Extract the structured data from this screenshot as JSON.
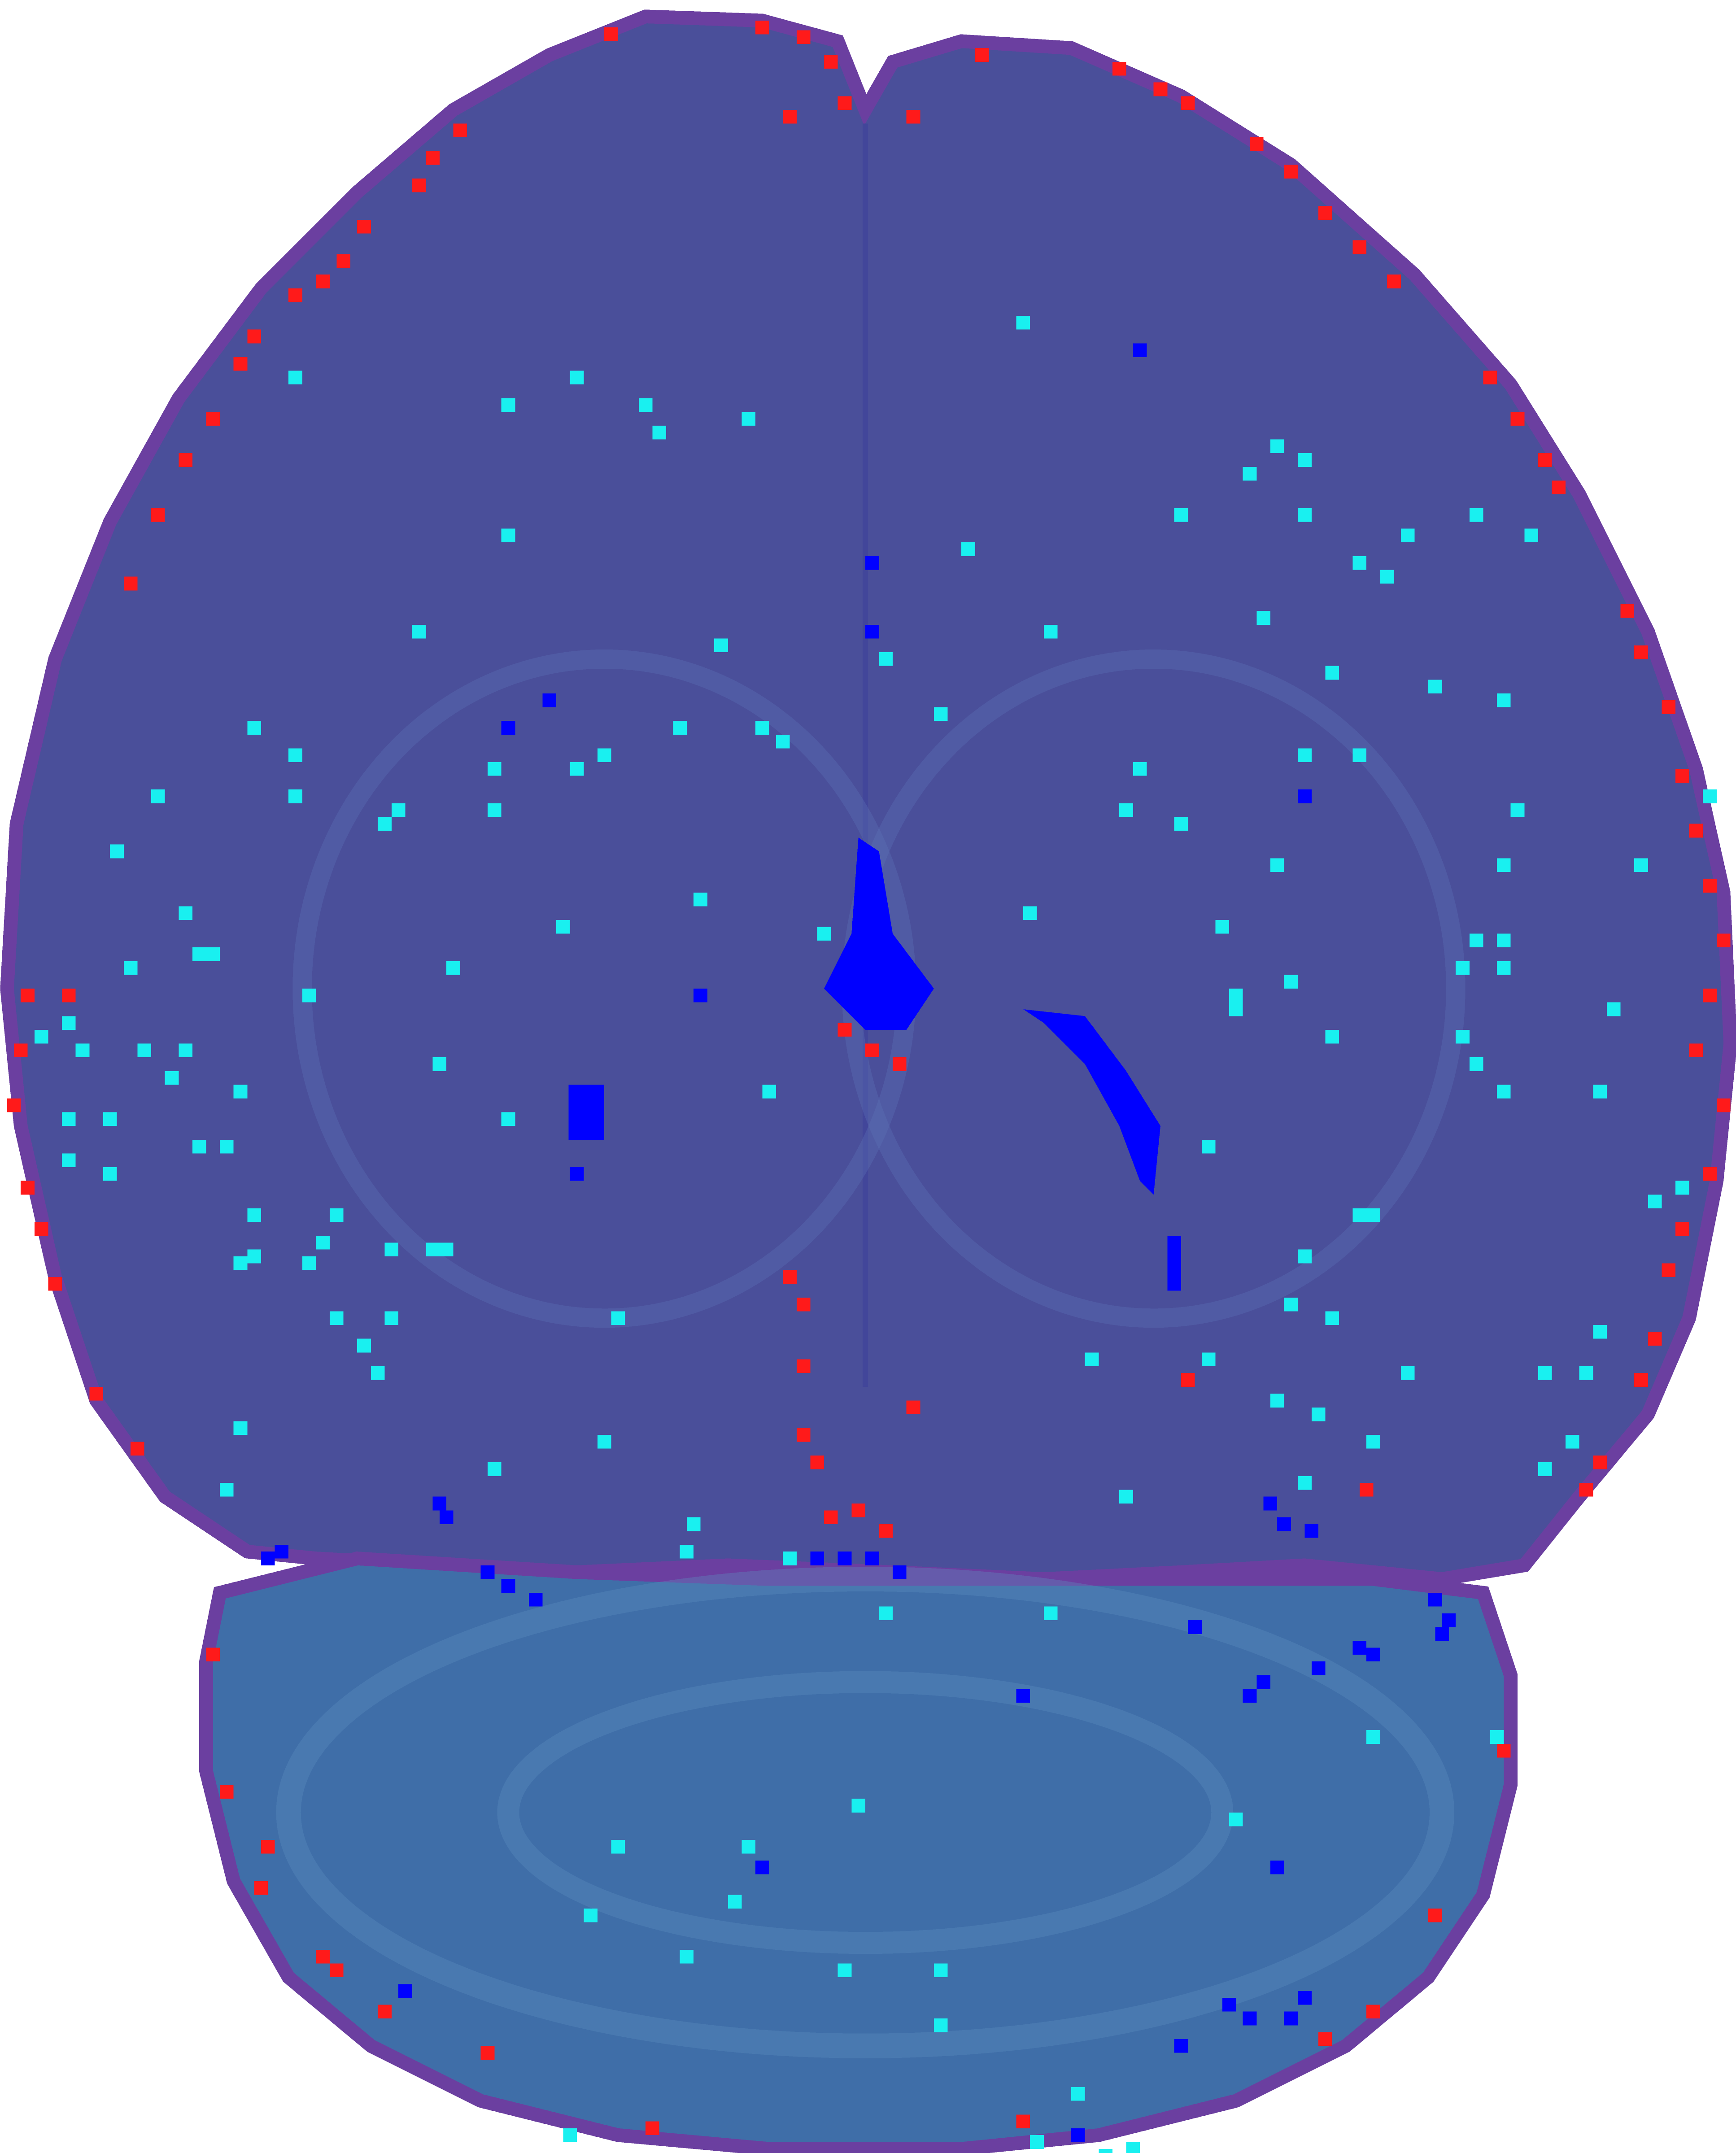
{
  "image": {
    "kind": "pixelated axial brain MRI slice with voxel overlay",
    "colors": {
      "background": "#ffffff",
      "tissue": "#4a4f9a",
      "tissue_dark": "#3f3f8e",
      "cerebellum": "#3f6ea8",
      "boundary": "#6b3fa0",
      "overlay_red": "#ff1a1a",
      "overlay_cyan": "#19f0f0",
      "overlay_blue": "#0000ff"
    },
    "overlays": [
      {
        "name": "red-voxels",
        "color": "#ff1a1a"
      },
      {
        "name": "cyan-voxels",
        "color": "#19f0f0"
      },
      {
        "name": "blue-voxels",
        "color": "#0000ff"
      }
    ]
  }
}
